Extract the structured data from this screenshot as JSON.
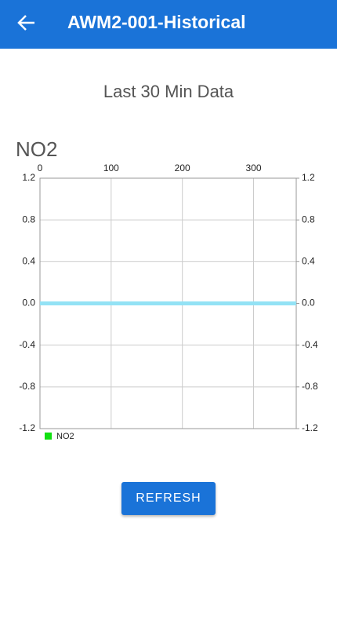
{
  "header": {
    "title": "AWM2-001-Historical"
  },
  "section_title": "Last 30 Min Data",
  "chart_data": {
    "type": "line",
    "title": "NO2",
    "x": [
      0,
      360
    ],
    "series": [
      {
        "name": "NO2",
        "color": "#93e2f5",
        "legend_color": "#11e011",
        "values": [
          0,
          0
        ]
      }
    ],
    "xlim": [
      0,
      360
    ],
    "xticks": [
      0,
      100,
      200,
      300
    ],
    "ylim": [
      -1.2,
      1.2
    ],
    "yticks": [
      -1.2,
      -0.8,
      -0.4,
      {
        "value": 0,
        "label": "0.0"
      },
      0.4,
      0.8,
      1.2
    ],
    "y2lim": [
      -1.2,
      1.2
    ],
    "y2ticks": [
      -1.2,
      -0.8,
      -0.4,
      {
        "value": 0,
        "label": "0.0"
      },
      0.4,
      0.8,
      1.2
    ],
    "grid": true,
    "legend": "bottom-left"
  },
  "button": {
    "label": "REFRESH"
  }
}
